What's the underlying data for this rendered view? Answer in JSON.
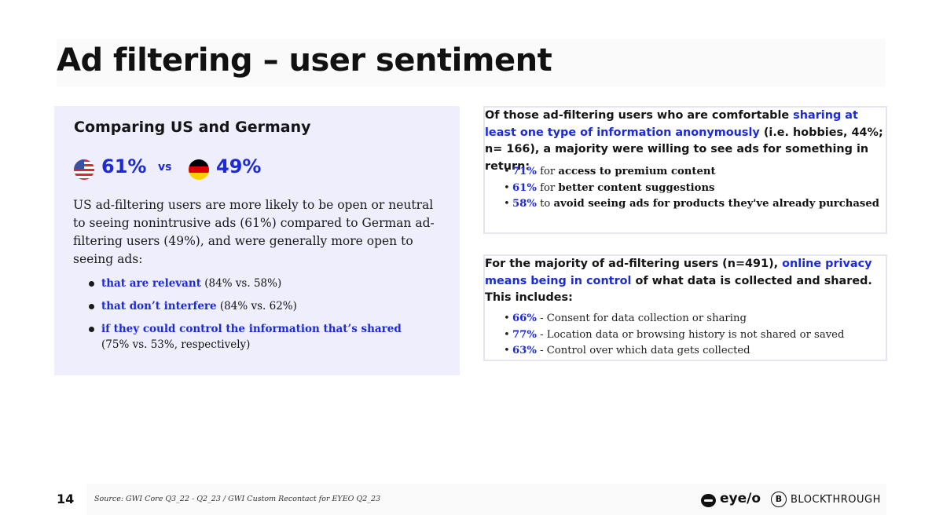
{
  "title": "Ad filtering – user sentiment",
  "left_panel": {
    "heading": "Comparing US and Germany",
    "us_pct": "61%",
    "vs": "vs",
    "de_pct": "49%",
    "body": "US ad-filtering users are more likely to be open or neutral to seeing nonintrusive ads (61%) compared to German ad-filtering users (49%), and were generally more open to seeing ads:",
    "bullets": [
      {
        "highlight": "that are relevant",
        "rest": " (84% vs. 58%)"
      },
      {
        "highlight": "that don’t interfere",
        "rest": " (84% vs. 62%)"
      },
      {
        "highlight": "if they could control the information that’s shared",
        "rest": "(75% vs. 53%, respectively)"
      }
    ]
  },
  "box1": {
    "intro": "Of those ad-filtering users who are comfortable ",
    "highlight": "sharing at least one type of information anonymously",
    "outro": " (i.e. hobbies, 44%; n= 166), a majority were willing to see ads for something in return:",
    "items": [
      {
        "num": "71%",
        "mid": " for ",
        "strong": "access to premium content"
      },
      {
        "num": "61%",
        "mid": " for ",
        "strong": "better content suggestions"
      },
      {
        "num": "58%",
        "mid": " to ",
        "strong": "avoid seeing ads for products they've already purchased"
      }
    ]
  },
  "box2": {
    "intro": "For the majority of ad-filtering users (n=491), ",
    "highlight": "online privacy means being in control",
    "outro": " of what data is collected and shared.",
    "line2": "This includes:",
    "items": [
      {
        "num": "66%",
        "text": " - Consent for data collection or sharing"
      },
      {
        "num": "77%",
        "text": " - Location data or browsing history is not shared or saved"
      },
      {
        "num": "63%",
        "text": " - Control over which data gets collected"
      }
    ]
  },
  "footer": {
    "page": "14",
    "source": "Source: GWI Core Q3_22 - Q2_23 / GWI Custom Recontact for EYEO Q2_23",
    "logo1": "eye/o",
    "logo2": "BLOCKTHROUGH",
    "logo2_mark": "B"
  },
  "colors": {
    "accent": "#1c2bd6",
    "panel": "#eeeefd",
    "de_black": "#000000",
    "de_red": "#dd0000",
    "de_gold": "#ffce00"
  }
}
